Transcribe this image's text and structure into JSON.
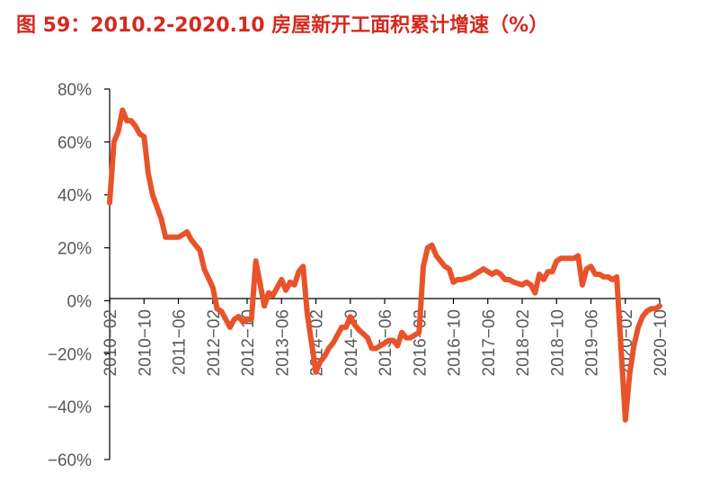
{
  "title": "图 59：2010.2-2020.10 房屋新开工面积累计增速（%）",
  "colors": {
    "title": "#d42a1f",
    "line": "#e8532a",
    "axis": "#000000",
    "text": "#595959"
  },
  "chart_data": {
    "type": "line",
    "title": "图 59：2010.2-2020.10 房屋新开工面积累计增速（%）",
    "xlabel": "",
    "ylabel": "",
    "ylim": [
      -60,
      80
    ],
    "yticks": [
      "80%",
      "60%",
      "40%",
      "20%",
      "0%",
      "−20%",
      "−40%",
      "−60%"
    ],
    "ytick_values": [
      80,
      60,
      40,
      20,
      0,
      -20,
      -40,
      -60
    ],
    "xticks": [
      "2010−02",
      "2010−10",
      "2011−06",
      "2012−02",
      "2012−10",
      "2013−06",
      "2014−02",
      "2014−10",
      "2015−06",
      "2016−02",
      "2016−10",
      "2017−06",
      "2018−02",
      "2018−10",
      "2019−06",
      "2020−02",
      "2020−10"
    ],
    "grid": false,
    "legend": "none",
    "series": [
      {
        "x": [
          "2010-02",
          "2010-03",
          "2010-04",
          "2010-05",
          "2010-06",
          "2010-07",
          "2010-08",
          "2010-09",
          "2010-10",
          "2010-11",
          "2010-12",
          "2011-02",
          "2011-03",
          "2011-04",
          "2011-05",
          "2011-06",
          "2011-07",
          "2011-08",
          "2011-09",
          "2011-10",
          "2011-11",
          "2011-12",
          "2012-02",
          "2012-03",
          "2012-04",
          "2012-05",
          "2012-06",
          "2012-07",
          "2012-08",
          "2012-09",
          "2012-10",
          "2012-11",
          "2012-12",
          "2013-02",
          "2013-03",
          "2013-04",
          "2013-05",
          "2013-06",
          "2013-07",
          "2013-08",
          "2013-09",
          "2013-10",
          "2013-11",
          "2013-12",
          "2014-02",
          "2014-03",
          "2014-04",
          "2014-05",
          "2014-06",
          "2014-07",
          "2014-08",
          "2014-09",
          "2014-10",
          "2014-11",
          "2014-12",
          "2015-02",
          "2015-03",
          "2015-04",
          "2015-05",
          "2015-06",
          "2015-07",
          "2015-08",
          "2015-09",
          "2015-10",
          "2015-11",
          "2015-12",
          "2016-02",
          "2016-03",
          "2016-04",
          "2016-05",
          "2016-06",
          "2016-07",
          "2016-08",
          "2016-09",
          "2016-10",
          "2016-11",
          "2016-12",
          "2017-02",
          "2017-03",
          "2017-04",
          "2017-05",
          "2017-06",
          "2017-07",
          "2017-08",
          "2017-09",
          "2017-10",
          "2017-11",
          "2017-12",
          "2018-02",
          "2018-03",
          "2018-04",
          "2018-05",
          "2018-06",
          "2018-07",
          "2018-08",
          "2018-09",
          "2018-10",
          "2018-11",
          "2018-12",
          "2019-02",
          "2019-03",
          "2019-04",
          "2019-05",
          "2019-06",
          "2019-07",
          "2019-08",
          "2019-09",
          "2019-10",
          "2019-11",
          "2019-12",
          "2020-02",
          "2020-03",
          "2020-04",
          "2020-05",
          "2020-06",
          "2020-07",
          "2020-08",
          "2020-09",
          "2020-10"
        ],
        "values": [
          37,
          60,
          64,
          72,
          68,
          68,
          66,
          63,
          62,
          48,
          40,
          31,
          24,
          24,
          24,
          24,
          25,
          26,
          23,
          21,
          19,
          12,
          5,
          -3,
          -4,
          -7,
          -10,
          -7,
          -6,
          -8,
          -7,
          -7,
          15,
          -2,
          3,
          2,
          5,
          8,
          4,
          7,
          6,
          11,
          13,
          -5,
          -27,
          -23,
          -21,
          -18,
          -16,
          -13,
          -10,
          -10,
          -6,
          -9,
          -11,
          -14,
          -18,
          -18,
          -17,
          -16,
          -15,
          -15,
          -17,
          -12,
          -14,
          -14,
          -12,
          13,
          20,
          21,
          17,
          15,
          13,
          12,
          7,
          8,
          8,
          9,
          10,
          11,
          12,
          11,
          10,
          11,
          10,
          8,
          8,
          7,
          6,
          7,
          6,
          3,
          10,
          8,
          11,
          11,
          15,
          16,
          16,
          16,
          17,
          6,
          12,
          13,
          10,
          10,
          9,
          9,
          8,
          9,
          -45,
          -28,
          -17,
          -10,
          -6,
          -4,
          -3,
          -3,
          -2
        ]
      }
    ]
  }
}
